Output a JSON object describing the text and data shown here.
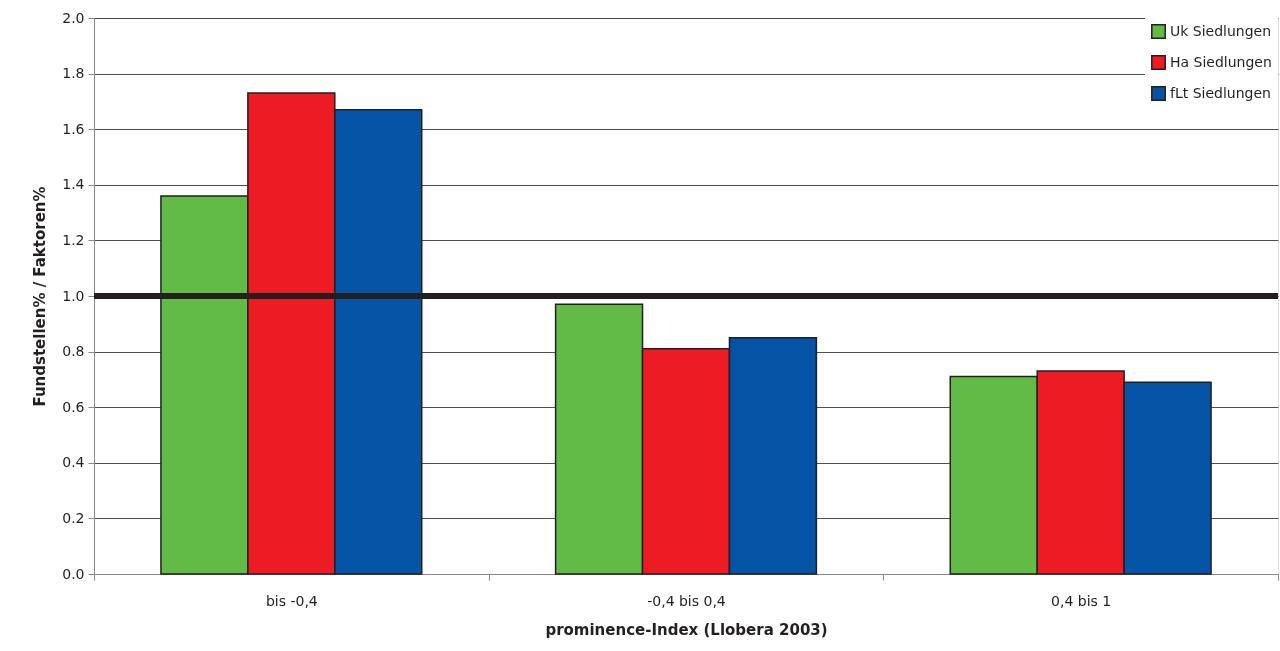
{
  "chart_data": {
    "type": "bar",
    "xlabel": "prominence-Index (Llobera 2003)",
    "ylabel": "Fundstellen% / Faktoren%",
    "categories": [
      "bis -0,4",
      "-0,4 bis 0,4",
      "0,4 bis 1"
    ],
    "series": [
      {
        "name": "Uk Siedlungen",
        "color": "#62bb46",
        "values": [
          1.36,
          0.97,
          0.71
        ]
      },
      {
        "name": "Ha Siedlungen",
        "color": "#ed1c24",
        "values": [
          1.73,
          0.81,
          0.73
        ]
      },
      {
        "name": "fLt Siedlungen",
        "color": "#0553a5",
        "values": [
          1.67,
          0.85,
          0.69
        ]
      }
    ],
    "ylim": [
      0,
      2
    ],
    "yticks": [
      {
        "value": 0,
        "label": "0.0"
      },
      0.2,
      0.4,
      0.6,
      0.8,
      {
        "value": 1,
        "label": "1.0"
      },
      1.2,
      1.4,
      1.6,
      1.8,
      {
        "value": 2,
        "label": "2.0"
      }
    ],
    "grid": "y",
    "legend": "top right",
    "ref_lines": [
      {
        "axis": "y",
        "value": 1,
        "color": "#231f20"
      }
    ]
  }
}
